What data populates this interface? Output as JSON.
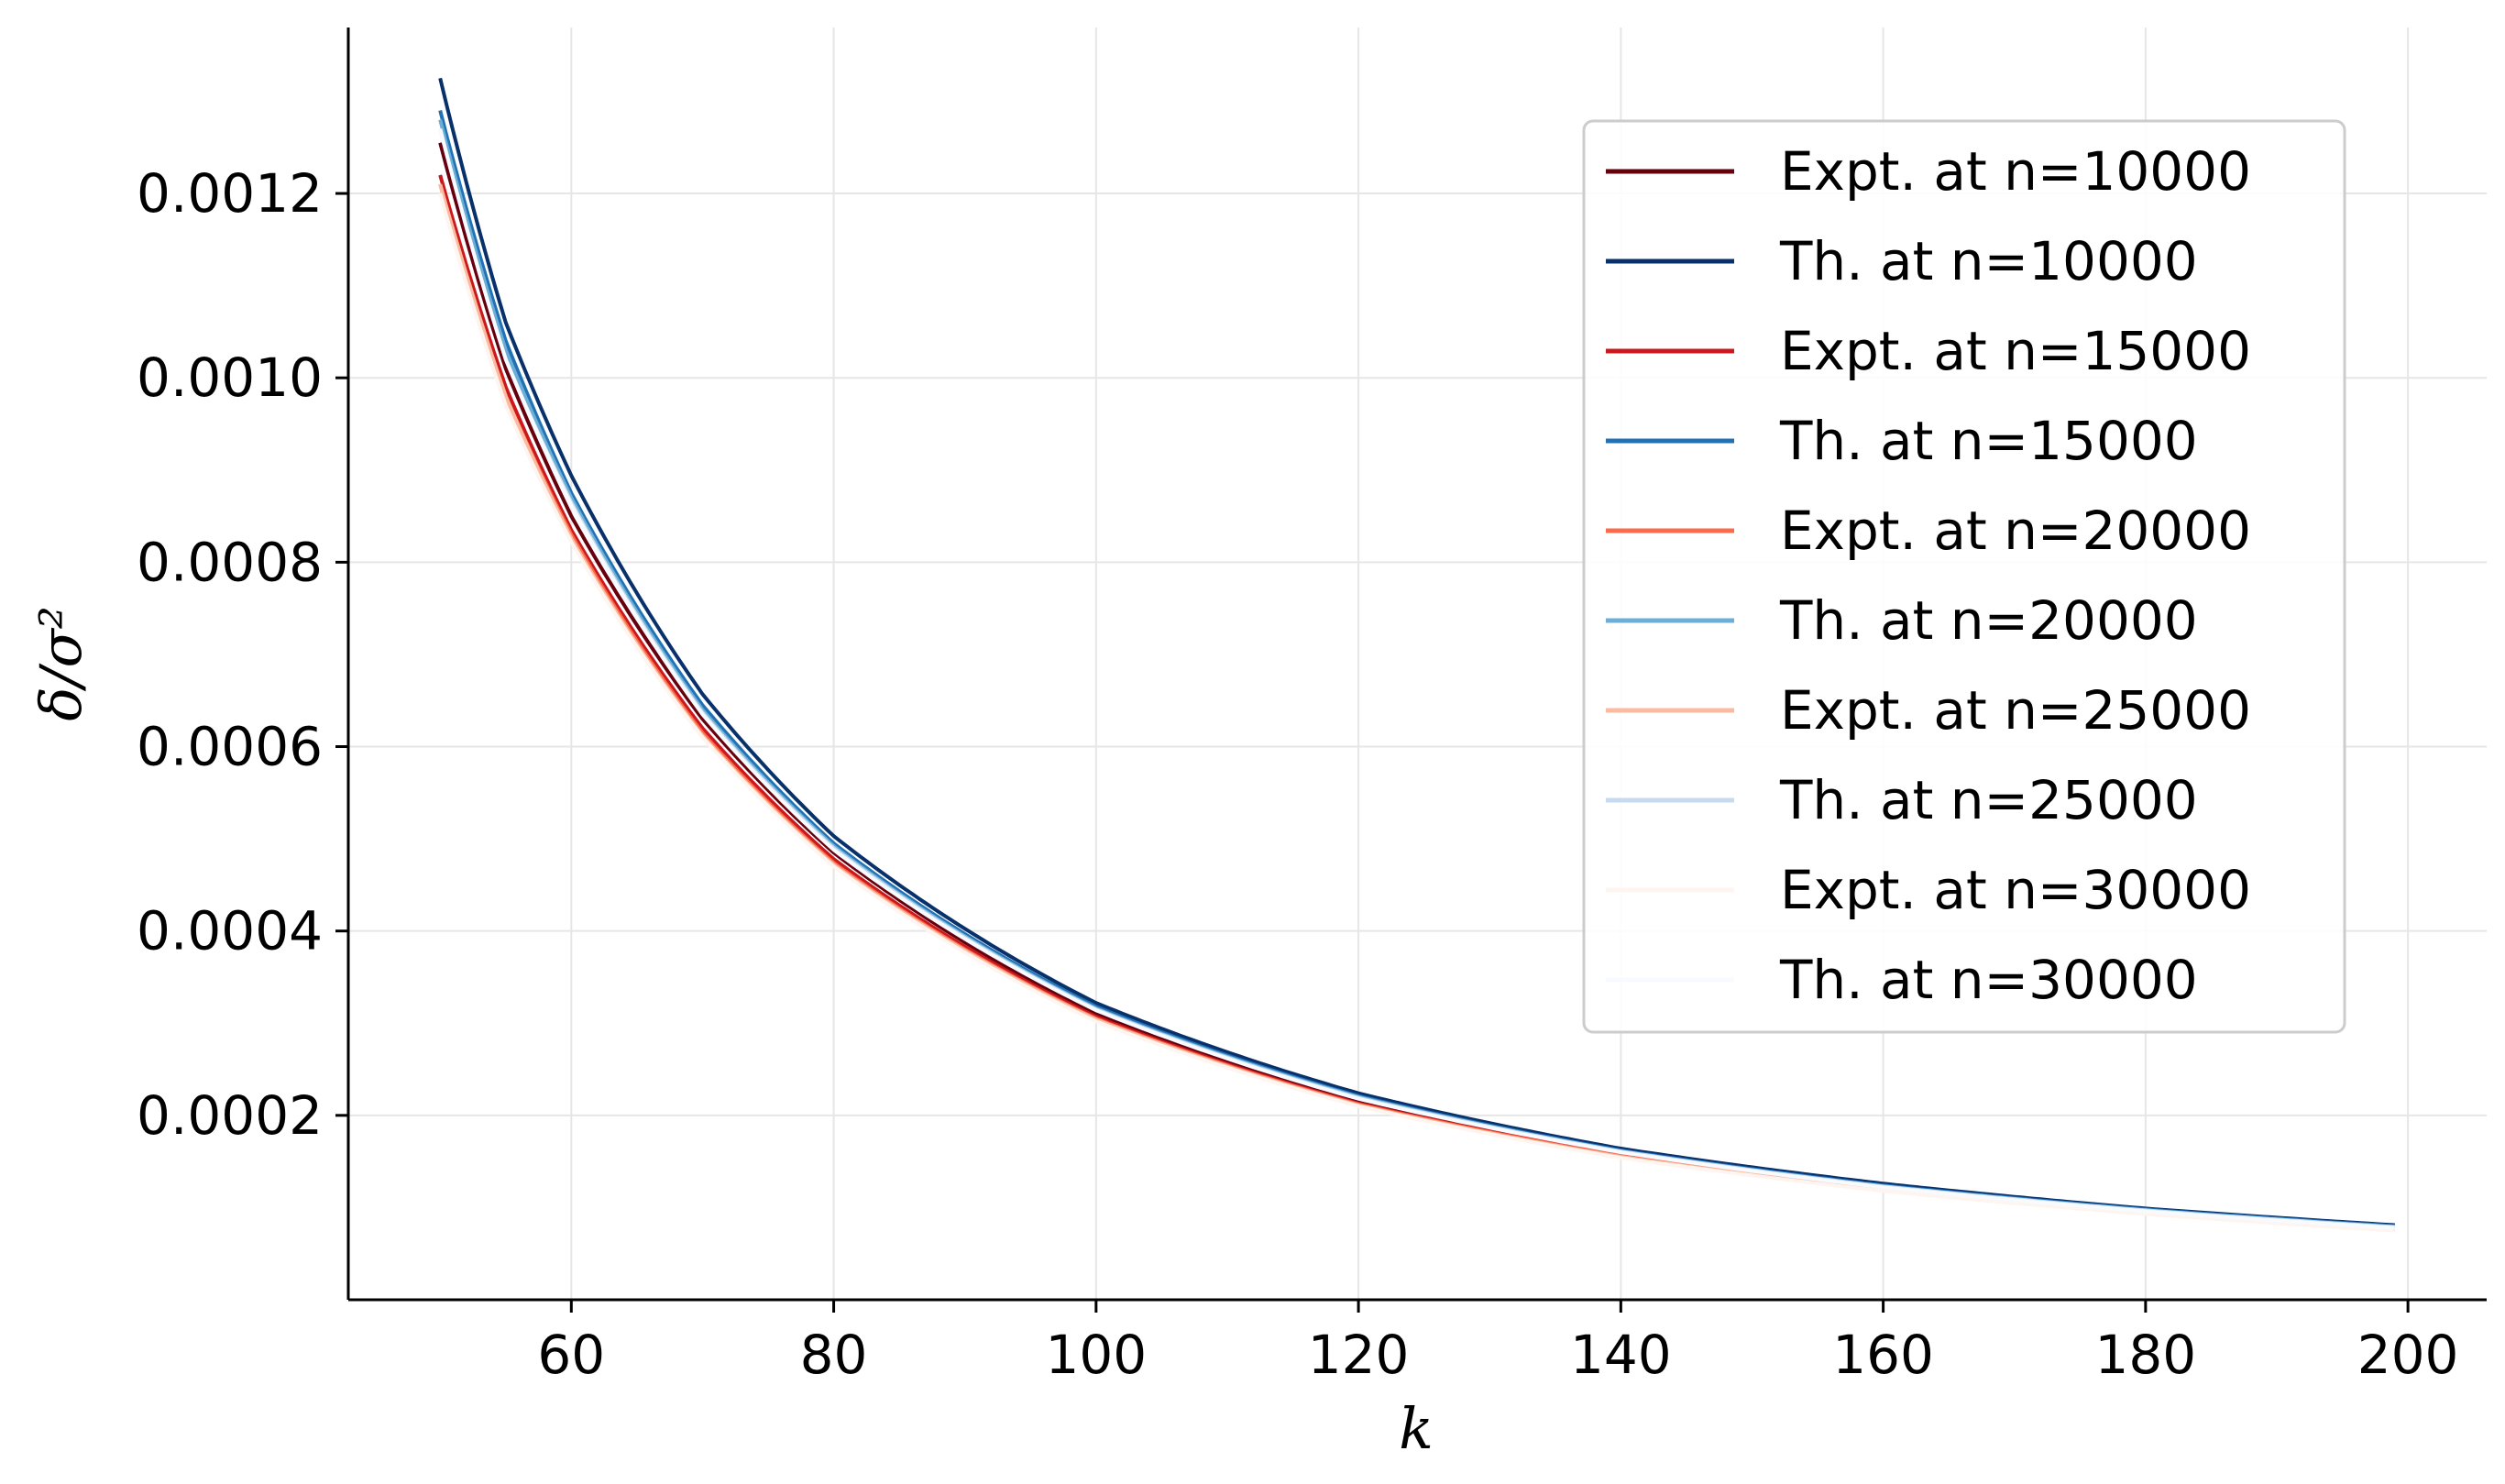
{
  "chart_data": {
    "type": "line",
    "xlabel": "k",
    "ylabel": "δ/σ²",
    "xlim": [
      43,
      206
    ],
    "ylim": [
      0.0,
      0.00138
    ],
    "x_ticks": [
      60,
      80,
      100,
      120,
      140,
      160,
      180,
      200
    ],
    "y_ticks": [
      0.0002,
      0.0004,
      0.0006,
      0.0008,
      0.001,
      0.0012
    ],
    "x_tick_labels": [
      "60",
      "80",
      "100",
      "120",
      "140",
      "160",
      "180",
      "200"
    ],
    "y_tick_labels": [
      "0.0002",
      "0.0004",
      "0.0006",
      "0.0008",
      "0.0010",
      "0.0012"
    ],
    "grid": true,
    "legend_position": "top-right",
    "x": [
      50,
      55,
      60,
      70,
      80,
      100,
      120,
      140,
      160,
      180,
      199
    ],
    "series": [
      {
        "name": "Expt. at n=10000",
        "color": "#67000d",
        "values": [
          0.001255,
          0.00101,
          0.00085,
          0.00063,
          0.000485,
          0.00031,
          0.000215,
          0.000158,
          0.000121,
          9.6e-05,
          7.8e-05
        ]
      },
      {
        "name": "Th. at n=10000",
        "color": "#08306b",
        "values": [
          0.001325,
          0.00106,
          0.000894,
          0.000657,
          0.000503,
          0.000322,
          0.000224,
          0.000164,
          0.000126,
          9.9e-05,
          8.1e-05
        ]
      },
      {
        "name": "Expt. at n=15000",
        "color": "#cb181d",
        "values": [
          0.00122,
          0.00099,
          0.000835,
          0.00062,
          0.000478,
          0.000307,
          0.000213,
          0.000157,
          0.00012,
          9.5e-05,
          7.7e-05
        ]
      },
      {
        "name": "Th. at n=15000",
        "color": "#2171b5",
        "values": [
          0.00129,
          0.00104,
          0.000875,
          0.000645,
          0.000495,
          0.000318,
          0.000221,
          0.000162,
          0.000124,
          9.8e-05,
          8e-05
        ]
      },
      {
        "name": "Expt. at n=20000",
        "color": "#fb6a4a",
        "values": [
          0.00121,
          0.00098,
          0.00083,
          0.000615,
          0.000474,
          0.000305,
          0.000212,
          0.000156,
          0.000119,
          9.4e-05,
          7.6e-05
        ]
      },
      {
        "name": "Th. at n=20000",
        "color": "#6baed6",
        "values": [
          0.00128,
          0.00103,
          0.00087,
          0.00064,
          0.000492,
          0.000316,
          0.00022,
          0.000161,
          0.000123,
          9.7e-05,
          7.9e-05
        ]
      },
      {
        "name": "Expt. at n=25000",
        "color": "#fcbba1",
        "values": [
          0.00121,
          0.00098,
          0.000826,
          0.000612,
          0.000472,
          0.000304,
          0.000211,
          0.000155,
          0.000119,
          9.4e-05,
          7.6e-05
        ]
      },
      {
        "name": "Th. at n=25000",
        "color": "#c6dbef",
        "values": [
          0.00127,
          0.00102,
          0.000865,
          0.000637,
          0.00049,
          0.000315,
          0.000219,
          0.000161,
          0.000123,
          9.7e-05,
          7.9e-05
        ]
      },
      {
        "name": "Expt. at n=30000",
        "color": "#fff5f0",
        "values": [
          0.0012,
          0.00097,
          0.000822,
          0.00061,
          0.00047,
          0.000302,
          0.00021,
          0.000154,
          0.000118,
          9.3e-05,
          7.5e-05
        ]
      },
      {
        "name": "Th. at n=30000",
        "color": "#f7fbff",
        "values": [
          0.00127,
          0.00102,
          0.000862,
          0.000635,
          0.000488,
          0.000314,
          0.000218,
          0.00016,
          0.000122,
          9.6e-05,
          7.8e-05
        ]
      }
    ]
  }
}
